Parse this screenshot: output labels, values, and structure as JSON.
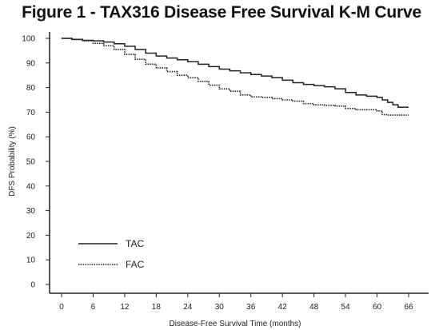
{
  "chart_data": {
    "type": "line",
    "title": "Figure 1 - TAX316 Disease Free Survival K-M Curve",
    "xlabel": "Disease-Free Survival Time (months)",
    "ylabel": "DFS Probability (%)",
    "xlim": [
      0,
      66
    ],
    "ylim": [
      0,
      100
    ],
    "xticks": [
      0,
      6,
      12,
      18,
      24,
      30,
      36,
      42,
      48,
      54,
      60,
      66
    ],
    "yticks": [
      0,
      10,
      20,
      30,
      40,
      50,
      60,
      70,
      80,
      90,
      100
    ],
    "grid": false,
    "legend_position": "bottom-left",
    "series": [
      {
        "name": "TAC",
        "style": "solid",
        "color": "#222222",
        "x": [
          0,
          2,
          4,
          6,
          8,
          10,
          12,
          14,
          16,
          18,
          20,
          22,
          24,
          26,
          28,
          30,
          32,
          34,
          36,
          38,
          40,
          42,
          44,
          46,
          48,
          50,
          52,
          54,
          56,
          58,
          60,
          61,
          62,
          63,
          64,
          66
        ],
        "y": [
          100,
          99.6,
          99.2,
          99,
          98.5,
          97.8,
          96.8,
          95.5,
          94,
          92.8,
          92,
          91.3,
          90.5,
          89.5,
          88.5,
          87.5,
          86.8,
          86,
          85.3,
          84.7,
          84,
          83,
          82,
          81.3,
          80.8,
          80.3,
          79.5,
          78,
          77,
          76.5,
          76,
          75,
          74,
          73,
          72,
          72
        ]
      },
      {
        "name": "FAC",
        "style": "dotted",
        "color": "#222222",
        "x": [
          0,
          2,
          4,
          6,
          8,
          10,
          12,
          14,
          16,
          18,
          20,
          22,
          24,
          26,
          28,
          30,
          32,
          34,
          36,
          38,
          40,
          42,
          44,
          46,
          48,
          50,
          52,
          54,
          56,
          58,
          60,
          61,
          62,
          66
        ],
        "y": [
          100,
          99.5,
          99,
          98,
          97,
          95.5,
          93.5,
          91.5,
          89.5,
          88,
          86.5,
          85,
          84,
          82.5,
          81,
          79.5,
          78.5,
          77,
          76.2,
          76,
          75.5,
          75,
          74.5,
          73.5,
          73,
          72.8,
          72.5,
          71.5,
          71,
          71,
          70.5,
          69,
          68.8,
          68.8
        ]
      }
    ]
  }
}
